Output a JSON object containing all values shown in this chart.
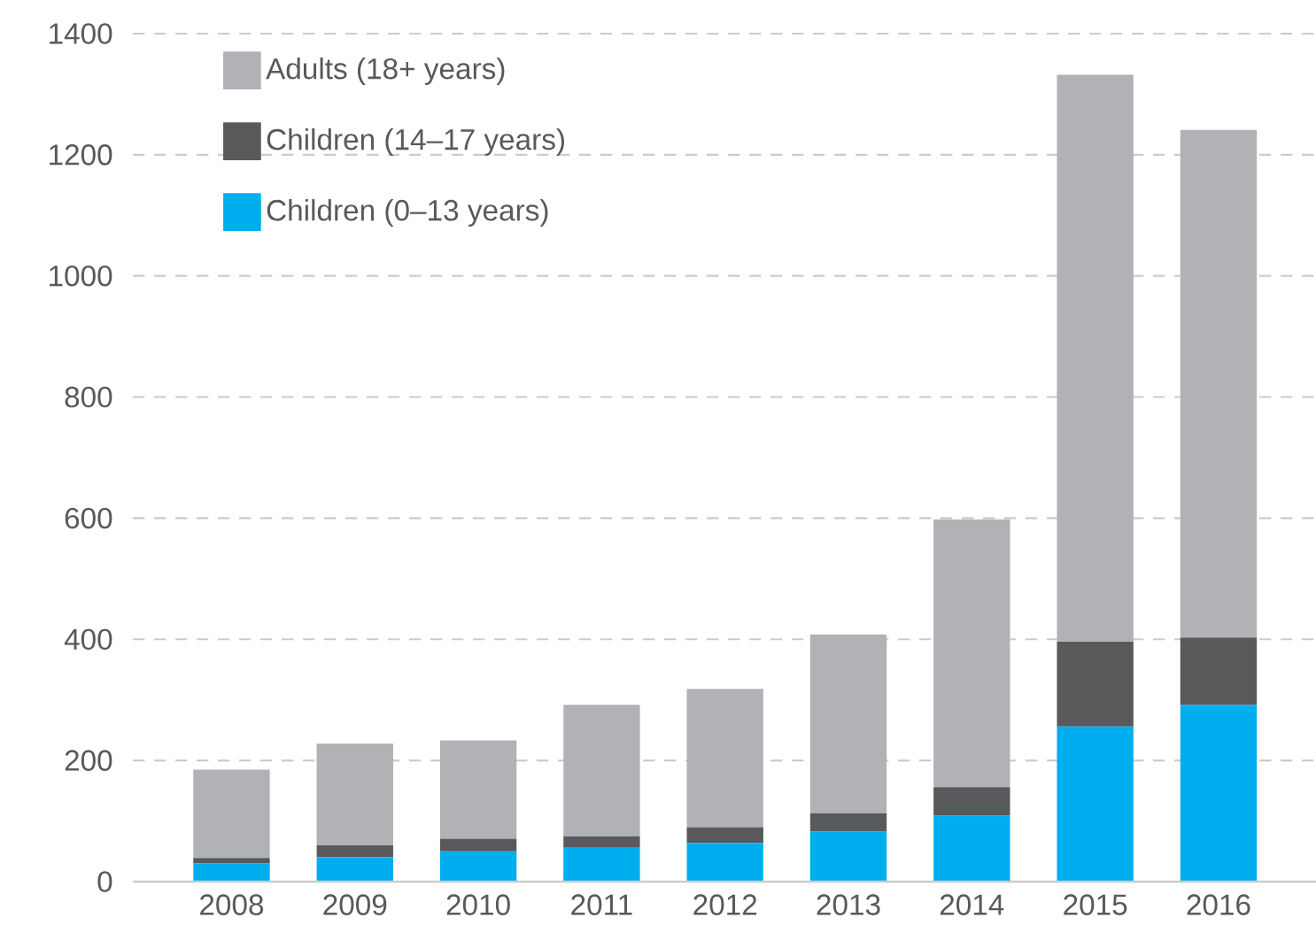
{
  "chart_data": {
    "type": "bar",
    "stacked": true,
    "categories": [
      "2008",
      "2009",
      "2010",
      "2011",
      "2012",
      "2013",
      "2014",
      "2015",
      "2016"
    ],
    "series": [
      {
        "name": "Children (0–13 years)",
        "color": "#00aeef",
        "values": [
          30,
          40,
          50,
          57,
          64,
          83,
          109,
          256,
          292
        ]
      },
      {
        "name": "Children (14–17 years)",
        "color": "#58595b",
        "values": [
          9,
          20,
          21,
          18,
          26,
          30,
          47,
          140,
          111
        ]
      },
      {
        "name": "Adults (18+ years)",
        "color": "#b1b2b6",
        "values": [
          146,
          168,
          162,
          217,
          228,
          295,
          442,
          936,
          838
        ]
      }
    ],
    "ylim": [
      0,
      1400
    ],
    "yticks": [
      0,
      200,
      400,
      600,
      800,
      1000,
      1200,
      1400
    ],
    "grid": "y",
    "legend": "top left"
  }
}
